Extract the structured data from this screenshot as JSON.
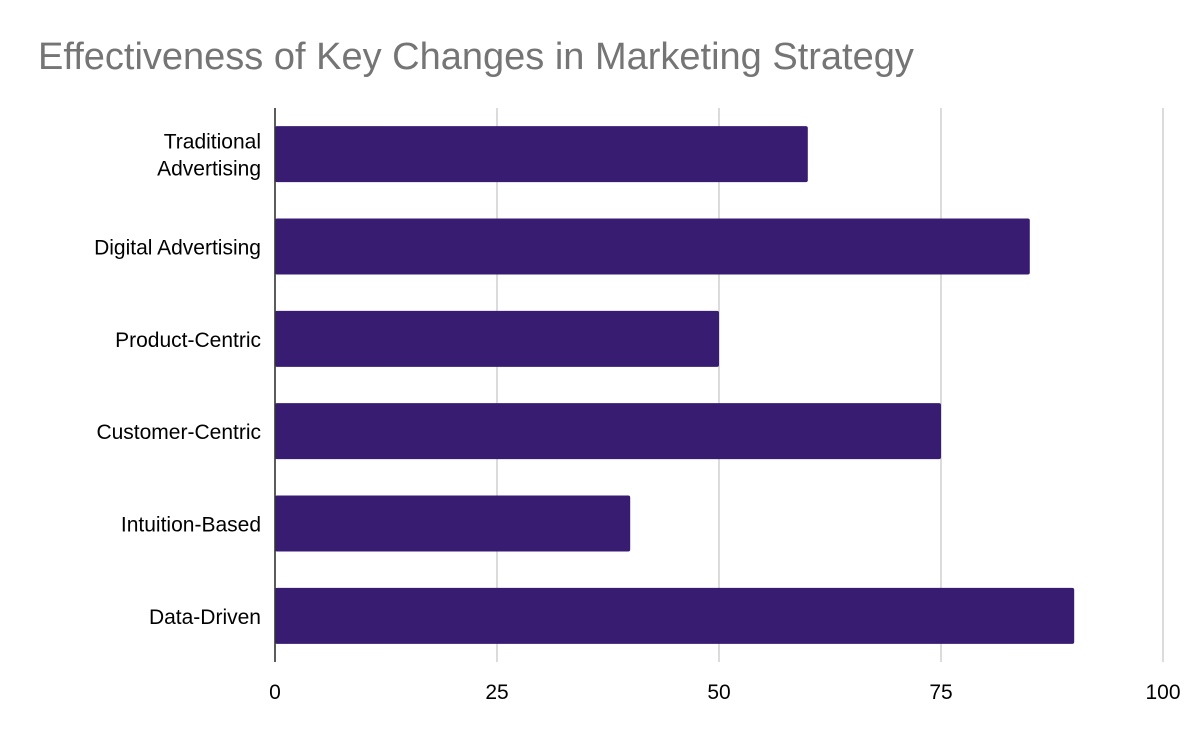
{
  "chart_data": {
    "type": "bar",
    "orientation": "horizontal",
    "title": "Effectiveness of Key Changes in Marketing Strategy",
    "categories": [
      "Traditional Advertising",
      "Digital Advertising",
      "Product-Centric",
      "Customer-Centric",
      "Intuition-Based",
      "Data-Driven"
    ],
    "category_label_lines": [
      [
        "Traditional",
        "Advertising"
      ],
      [
        "Digital Advertising"
      ],
      [
        "Product-Centric"
      ],
      [
        "Customer-Centric"
      ],
      [
        "Intuition-Based"
      ],
      [
        "Data-Driven"
      ]
    ],
    "values": [
      60,
      85,
      50,
      75,
      40,
      90
    ],
    "xlim": [
      0,
      100
    ],
    "x_ticks": [
      0,
      25,
      50,
      75,
      100
    ],
    "xlabel": "",
    "ylabel": "",
    "grid": true,
    "legend": "none",
    "bar_color": "#371c72",
    "grid_color": "#c8c8c8",
    "axis_color": "#333333",
    "title_color": "#757575"
  }
}
